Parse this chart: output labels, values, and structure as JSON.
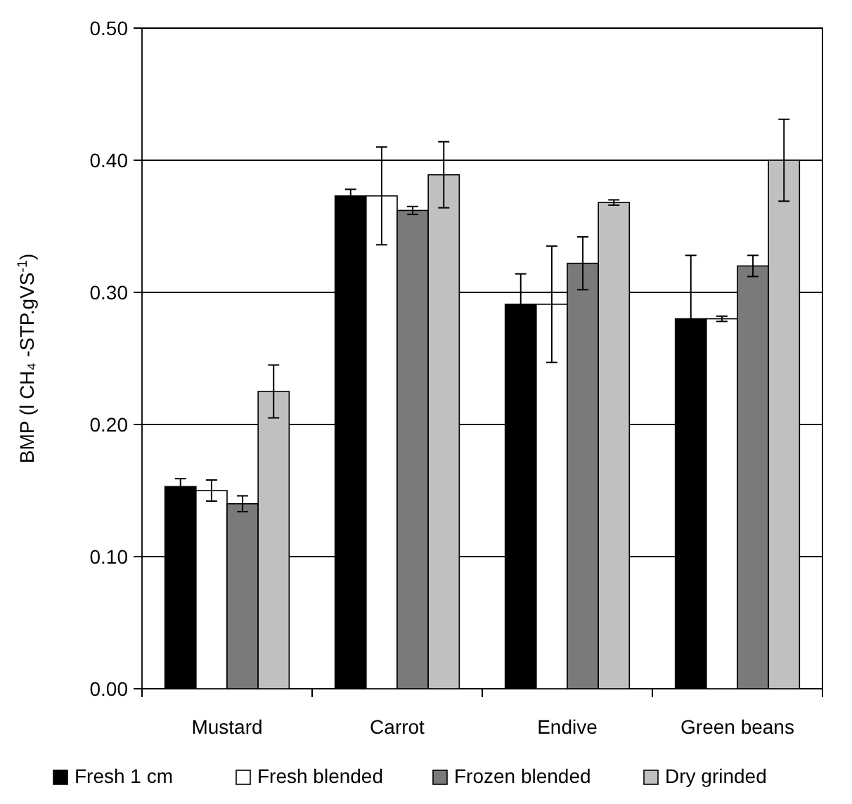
{
  "chart_data": {
    "type": "bar",
    "ylabel": "BMP (l CH₄ -STP.gVS$^{-1}$)",
    "categories": [
      "Mustard",
      "Carrot",
      "Endive",
      "Green beans"
    ],
    "series": [
      {
        "name": "Fresh 1 cm",
        "color": "#000000",
        "values": [
          0.153,
          0.373,
          0.291,
          0.28
        ],
        "errors": [
          0.006,
          0.005,
          0.023,
          0.048
        ]
      },
      {
        "name": "Fresh blended",
        "color": "#ffffff",
        "values": [
          0.15,
          0.373,
          0.291,
          0.28
        ],
        "errors": [
          0.008,
          0.037,
          0.044,
          0.002
        ]
      },
      {
        "name": "Frozen blended",
        "color": "#7a7a7a",
        "values": [
          0.14,
          0.362,
          0.322,
          0.32
        ],
        "errors": [
          0.006,
          0.003,
          0.02,
          0.008
        ]
      },
      {
        "name": "Dry grinded",
        "color": "#c0c0c0",
        "values": [
          0.225,
          0.389,
          0.368,
          0.4
        ],
        "errors": [
          0.02,
          0.025,
          0.002,
          0.031
        ]
      }
    ],
    "ylim": [
      0,
      0.5
    ],
    "yticks": [
      {
        "value": 0,
        "label": "0.00"
      },
      {
        "value": 0.1,
        "label": "0.10"
      },
      {
        "value": 0.2,
        "label": "0.20"
      },
      {
        "value": 0.3,
        "label": "0.30"
      },
      {
        "value": 0.4,
        "label": "0.40"
      },
      {
        "value": 0.5,
        "label": "0.50"
      }
    ],
    "grid": "y",
    "legend": "bottom"
  }
}
